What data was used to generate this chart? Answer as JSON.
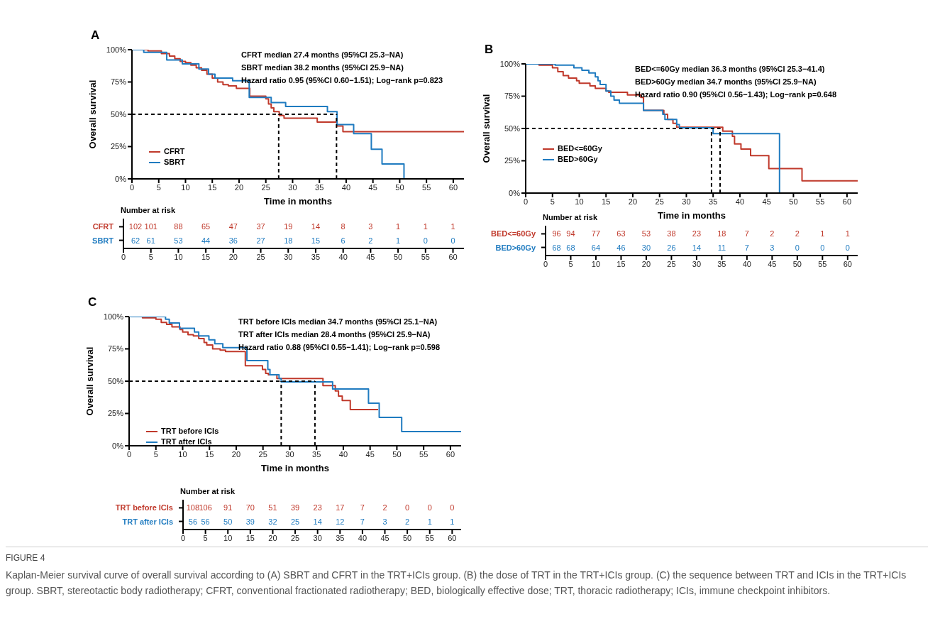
{
  "chart_data": [
    {
      "type": "step",
      "title": "A",
      "xlabel": "Time in months",
      "ylabel": "Overall survival",
      "xlim": [
        0,
        62
      ],
      "xticks": [
        0,
        5,
        10,
        15,
        20,
        25,
        30,
        35,
        40,
        45,
        50,
        55,
        60
      ],
      "ylim": [
        0,
        100
      ],
      "yticks": [
        {
          "value": 0,
          "label": "0%"
        },
        {
          "value": 25,
          "label": "25%"
        },
        {
          "value": 50,
          "label": "50%"
        },
        {
          "value": 75,
          "label": "75%"
        },
        {
          "value": 100,
          "label": "100%"
        }
      ],
      "legend": "bottom left",
      "grid": false,
      "annotations": [
        "CFRT median 27.4 months (95%CI 25.3−NA)",
        "SBRT median 38.2 months (95%CI 25.9−NA)",
        "Hazard ratio 0.95 (95%CI 0.60−1.51); Log−rank p=0.823"
      ],
      "ref_lines": [
        {
          "axis": "y",
          "value": 50,
          "color": "#000000",
          "line_style": "dashed"
        },
        {
          "axis": "x",
          "value": 27.4,
          "color": "#000000",
          "line_style": "dashed"
        },
        {
          "axis": "x",
          "value": 38.2,
          "color": "#000000",
          "line_style": "dashed"
        }
      ],
      "series": [
        {
          "name": "CFRT",
          "color": "#c0392b",
          "x": [
            0,
            3,
            5.5,
            7,
            8,
            9,
            10,
            11,
            12,
            13,
            14,
            15,
            16,
            17,
            18,
            19.5,
            22,
            25,
            25.5,
            26,
            26.5,
            27.5,
            28.4,
            34.6,
            38.3,
            39.4,
            62
          ],
          "values": [
            100,
            99,
            97,
            95,
            93,
            91,
            90,
            88,
            86,
            84,
            81,
            78,
            75,
            73,
            72,
            70,
            64,
            62,
            58,
            55,
            52,
            49,
            47,
            44,
            41,
            36.5,
            36.5
          ]
        },
        {
          "name": "SBRT",
          "color": "#1f7bc0",
          "x": [
            0,
            2.2,
            6.5,
            9.4,
            12.5,
            14.3,
            15.5,
            18.8,
            21.9,
            26,
            28.7,
            36.5,
            38.3,
            41.4,
            44.7,
            46.7,
            50.8
          ],
          "values": [
            100,
            98,
            92,
            89,
            85,
            81,
            78,
            76,
            63,
            59,
            56,
            52,
            42,
            35,
            23,
            11.5,
            0
          ]
        }
      ]
    },
    {
      "type": "heatmap",
      "title": "Number at risk",
      "data_labels": true,
      "x": [
        2.2,
        5,
        10,
        15,
        20,
        25,
        30,
        35,
        40,
        45,
        50,
        55,
        60
      ],
      "xlim": [
        0,
        62
      ],
      "xticks": [
        0,
        5,
        10,
        15,
        20,
        25,
        30,
        35,
        40,
        45,
        50,
        55,
        60
      ],
      "y_categories": [
        "CFRT",
        "SBRT"
      ],
      "colors": [
        "#c0392b",
        "#1f7bc0"
      ],
      "cells": [
        [
          102,
          101,
          88,
          65,
          47,
          37,
          19,
          14,
          8,
          3,
          1,
          1,
          1
        ],
        [
          62,
          61,
          53,
          44,
          36,
          27,
          18,
          15,
          6,
          2,
          1,
          0,
          0
        ]
      ]
    },
    {
      "type": "step",
      "title": "B",
      "xlabel": "Time in months",
      "ylabel": "Overall survival",
      "xlim": [
        0,
        62
      ],
      "xticks": [
        0,
        5,
        10,
        15,
        20,
        25,
        30,
        35,
        40,
        45,
        50,
        55,
        60
      ],
      "ylim": [
        0,
        100
      ],
      "yticks": [
        {
          "value": 0,
          "label": "0%"
        },
        {
          "value": 25,
          "label": "25%"
        },
        {
          "value": 50,
          "label": "50%"
        },
        {
          "value": 75,
          "label": "75%"
        },
        {
          "value": 100,
          "label": "100%"
        }
      ],
      "legend": "bottom left",
      "grid": false,
      "annotations": [
        "BED<=60Gy median 36.3 months (95%CI 25.3−41.4)",
        "BED>60Gy median 34.7 months (95%CI 25.9−NA)",
        "Hazard ratio 0.90 (95%CI 0.56−1.43); Log−rank p=0.648"
      ],
      "ref_lines": [
        {
          "axis": "y",
          "value": 50,
          "color": "#000000",
          "line_style": "dashed"
        },
        {
          "axis": "x",
          "value": 34.7,
          "color": "#000000",
          "line_style": "dashed"
        },
        {
          "axis": "x",
          "value": 36.3,
          "color": "#000000",
          "line_style": "dashed"
        }
      ],
      "series": [
        {
          "name": "BED<=60Gy",
          "color": "#c0392b",
          "x": [
            0,
            2.5,
            5,
            6,
            7,
            8,
            9.5,
            10,
            12,
            13,
            15,
            15.5,
            19,
            21.5,
            22,
            25.8,
            26.5,
            27.5,
            28.2,
            36.8,
            38.6,
            39,
            40.2,
            42,
            45.4,
            51.6,
            62
          ],
          "values": [
            100,
            99,
            97,
            94,
            91,
            89,
            87,
            85,
            83,
            81,
            79,
            78,
            76,
            74,
            64,
            61,
            57,
            54,
            51,
            48,
            44,
            38,
            34,
            29,
            19,
            9.5,
            9.5
          ]
        },
        {
          "name": "BED>60Gy",
          "color": "#1f7bc0",
          "x": [
            0,
            5.5,
            9,
            10.5,
            11.8,
            13,
            13.5,
            13.9,
            15,
            15.9,
            16.5,
            17.5,
            22,
            25.6,
            26,
            28.2,
            28.7,
            35,
            47.4
          ],
          "values": [
            100,
            99,
            97,
            95,
            93,
            90,
            87,
            84,
            79,
            75,
            72,
            69.5,
            64,
            61,
            57,
            53,
            50.5,
            46,
            0
          ]
        }
      ]
    },
    {
      "type": "heatmap",
      "title": "Number at risk",
      "data_labels": true,
      "x": [
        2.2,
        5,
        10,
        15,
        20,
        25,
        30,
        35,
        40,
        45,
        50,
        55,
        60
      ],
      "xlim": [
        0,
        62
      ],
      "xticks": [
        0,
        5,
        10,
        15,
        20,
        25,
        30,
        35,
        40,
        45,
        50,
        55,
        60
      ],
      "y_categories": [
        "BED<=60Gy",
        "BED>60Gy"
      ],
      "colors": [
        "#c0392b",
        "#1f7bc0"
      ],
      "cells": [
        [
          96,
          94,
          77,
          63,
          53,
          38,
          23,
          18,
          7,
          2,
          2,
          1,
          1
        ],
        [
          68,
          68,
          64,
          46,
          30,
          26,
          14,
          11,
          7,
          3,
          0,
          0,
          0
        ]
      ]
    },
    {
      "type": "step",
      "title": "C",
      "xlabel": "Time in months",
      "ylabel": "Overall survival",
      "xlim": [
        0,
        62
      ],
      "xticks": [
        0,
        5,
        10,
        15,
        20,
        25,
        30,
        35,
        40,
        45,
        50,
        55,
        60
      ],
      "ylim": [
        0,
        100
      ],
      "yticks": [
        {
          "value": 0,
          "label": "0%"
        },
        {
          "value": 25,
          "label": "25%"
        },
        {
          "value": 50,
          "label": "50%"
        },
        {
          "value": 75,
          "label": "75%"
        },
        {
          "value": 100,
          "label": "100%"
        }
      ],
      "legend": "bottom left",
      "grid": false,
      "annotations": [
        "TRT before ICIs median 34.7 months (95%CI 25.1−NA)",
        "TRT after ICIs median 28.4 months (95%CI 25.9−NA)",
        "Hazard ratio 0.88 (95%CI 0.55−1.41); Log−rank p=0.598"
      ],
      "ref_lines": [
        {
          "axis": "y",
          "value": 50,
          "color": "#000000",
          "line_style": "dashed"
        },
        {
          "axis": "x",
          "value": 28.4,
          "color": "#000000",
          "line_style": "dashed"
        },
        {
          "axis": "x",
          "value": 34.7,
          "color": "#000000",
          "line_style": "dashed"
        }
      ],
      "series": [
        {
          "name": "TRT before ICIs",
          "color": "#c0392b",
          "x": [
            0,
            2.5,
            5,
            6,
            7,
            8,
            9.5,
            10,
            11,
            12,
            13,
            14,
            14.5,
            15.6,
            17,
            18,
            21.7,
            24.9,
            25.5,
            26,
            27.6,
            36.2,
            38.5,
            39.1,
            39.8,
            41.3,
            46.5
          ],
          "values": [
            100,
            99,
            98,
            95.5,
            94,
            92,
            90,
            88,
            86,
            85,
            83,
            80,
            78,
            75,
            74,
            73,
            62,
            59,
            56,
            55,
            52,
            46.5,
            42.5,
            38.5,
            35,
            28,
            28
          ]
        },
        {
          "name": "TRT after ICIs",
          "color": "#1f7bc0",
          "x": [
            0,
            6.8,
            7.5,
            9.4,
            12.2,
            13,
            14.9,
            16,
            17.5,
            22,
            25.9,
            26.3,
            28,
            28.4,
            38,
            44.7,
            46.7,
            50.9,
            62
          ],
          "values": [
            100,
            98,
            95,
            91,
            88,
            85,
            82,
            79,
            76,
            66,
            59,
            55,
            52,
            49.5,
            44,
            33,
            22,
            11,
            11
          ]
        }
      ]
    },
    {
      "type": "heatmap",
      "title": "Number at risk",
      "data_labels": true,
      "x": [
        2.2,
        5,
        10,
        15,
        20,
        25,
        30,
        35,
        40,
        45,
        50,
        55,
        60
      ],
      "xlim": [
        0,
        62
      ],
      "xticks": [
        0,
        5,
        10,
        15,
        20,
        25,
        30,
        35,
        40,
        45,
        50,
        55,
        60
      ],
      "y_categories": [
        "TRT before ICIs",
        "TRT after ICIs"
      ],
      "colors": [
        "#c0392b",
        "#1f7bc0"
      ],
      "cells": [
        [
          108,
          106,
          91,
          70,
          51,
          39,
          23,
          17,
          7,
          2,
          0,
          0,
          0
        ],
        [
          56,
          56,
          50,
          39,
          32,
          25,
          14,
          12,
          7,
          3,
          2,
          1,
          1
        ]
      ]
    },
    {
      "type": "other",
      "title": "FIGURE 4",
      "annotations": [
        "Kaplan-Meier survival curve of overall survival according to (A) SBRT and CFRT in the TRT+ICIs group. (B) the dose of TRT in the TRT+ICIs group. (C) the sequence between TRT and ICIs in the TRT+ICIs group. SBRT, stereotactic body radiotherapy; CFRT, conventional fractionated radiotherapy; BED, biologically effective dose; TRT, thoracic radiotherapy; ICIs, immune checkpoint inhibitors."
      ]
    }
  ]
}
